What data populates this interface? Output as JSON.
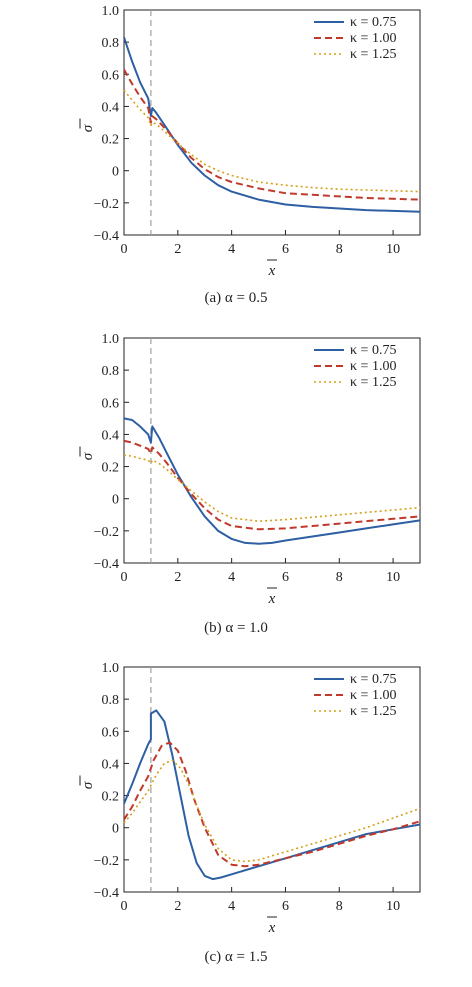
{
  "colors": {
    "k075": "#2e5fa3",
    "k100": "#c0392b",
    "k125": "#d4a017",
    "axis": "#231f20",
    "refline": "#a0a0a0"
  },
  "chart_data": [
    {
      "type": "line",
      "caption": "(a) α = 0.5",
      "xlabel": "x",
      "ylabel": "σ",
      "xlim": [
        0,
        11
      ],
      "ylim": [
        -0.4,
        1.0
      ],
      "xticks": [
        "0",
        "2",
        "4",
        "6",
        "8",
        "10"
      ],
      "yticks": [
        "1.0",
        "0.8",
        "0.6",
        "0.4",
        "0.2",
        "0",
        "−0.2",
        "−0.4"
      ],
      "vline_x": 1.0,
      "legend_position": "top-right",
      "series": [
        {
          "name": "κ = 0.75",
          "style": "solid",
          "x": [
            0,
            0.3,
            0.6,
            0.9,
            1.0,
            1.05,
            1.2,
            1.6,
            2,
            2.5,
            3,
            3.5,
            4,
            5,
            6,
            7,
            8,
            9,
            10,
            11
          ],
          "y": [
            0.83,
            0.68,
            0.55,
            0.45,
            0.34,
            0.39,
            0.36,
            0.26,
            0.16,
            0.05,
            -0.03,
            -0.09,
            -0.13,
            -0.18,
            -0.21,
            -0.225,
            -0.235,
            -0.245,
            -0.25,
            -0.255
          ]
        },
        {
          "name": "κ = 1.00",
          "style": "dashed",
          "x": [
            0,
            0.3,
            0.6,
            0.9,
            1.0,
            1.05,
            1.2,
            1.6,
            2,
            2.5,
            3,
            3.5,
            4,
            5,
            6,
            7,
            8,
            9,
            10,
            11
          ],
          "y": [
            0.63,
            0.54,
            0.46,
            0.39,
            0.3,
            0.34,
            0.32,
            0.25,
            0.17,
            0.08,
            0.01,
            -0.04,
            -0.07,
            -0.11,
            -0.14,
            -0.15,
            -0.16,
            -0.17,
            -0.175,
            -0.18
          ]
        },
        {
          "name": "κ = 1.25",
          "style": "dotted",
          "x": [
            0,
            0.3,
            0.6,
            0.9,
            1.0,
            1.05,
            1.2,
            1.6,
            2,
            2.5,
            3,
            3.5,
            4,
            5,
            6,
            7,
            8,
            9,
            10,
            11
          ],
          "y": [
            0.5,
            0.44,
            0.38,
            0.33,
            0.28,
            0.3,
            0.29,
            0.23,
            0.17,
            0.1,
            0.04,
            0.0,
            -0.03,
            -0.07,
            -0.09,
            -0.105,
            -0.115,
            -0.12,
            -0.125,
            -0.13
          ]
        }
      ]
    },
    {
      "type": "line",
      "caption": "(b) α = 1.0",
      "xlabel": "x",
      "ylabel": "σ",
      "xlim": [
        0,
        11
      ],
      "ylim": [
        -0.4,
        1.0
      ],
      "xticks": [
        "0",
        "2",
        "4",
        "6",
        "8",
        "10"
      ],
      "yticks": [
        "1.0",
        "0.8",
        "0.6",
        "0.4",
        "0.2",
        "0",
        "−0.2",
        "−0.4"
      ],
      "vline_x": 1.0,
      "legend_position": "top-right",
      "series": [
        {
          "name": "κ = 0.75",
          "style": "solid",
          "x": [
            0,
            0.3,
            0.6,
            0.9,
            1.0,
            1.05,
            1.3,
            1.6,
            2,
            2.5,
            3,
            3.5,
            4,
            4.5,
            5,
            5.5,
            6,
            7,
            8,
            9,
            10,
            11
          ],
          "y": [
            0.5,
            0.49,
            0.45,
            0.4,
            0.35,
            0.45,
            0.38,
            0.28,
            0.15,
            0.01,
            -0.11,
            -0.2,
            -0.25,
            -0.275,
            -0.28,
            -0.275,
            -0.26,
            -0.235,
            -0.21,
            -0.185,
            -0.16,
            -0.135
          ]
        },
        {
          "name": "κ = 1.00",
          "style": "dashed",
          "x": [
            0,
            0.3,
            0.6,
            0.9,
            1.0,
            1.05,
            1.3,
            1.6,
            2,
            2.5,
            3,
            3.5,
            4,
            5,
            6,
            7,
            8,
            9,
            10,
            11
          ],
          "y": [
            0.36,
            0.35,
            0.33,
            0.31,
            0.28,
            0.32,
            0.28,
            0.22,
            0.13,
            0.03,
            -0.06,
            -0.13,
            -0.17,
            -0.19,
            -0.185,
            -0.17,
            -0.155,
            -0.14,
            -0.125,
            -0.11
          ]
        },
        {
          "name": "κ = 1.25",
          "style": "dotted",
          "x": [
            0,
            0.3,
            0.6,
            0.9,
            1.0,
            1.05,
            1.3,
            1.6,
            2,
            2.5,
            3,
            3.5,
            4,
            5,
            6,
            7,
            8,
            9,
            10,
            11
          ],
          "y": [
            0.27,
            0.265,
            0.25,
            0.24,
            0.22,
            0.24,
            0.22,
            0.18,
            0.12,
            0.05,
            -0.02,
            -0.08,
            -0.12,
            -0.14,
            -0.13,
            -0.115,
            -0.1,
            -0.085,
            -0.07,
            -0.055
          ]
        }
      ]
    },
    {
      "type": "line",
      "caption": "(c) α = 1.5",
      "xlabel": "x",
      "ylabel": "σ",
      "xlim": [
        0,
        11
      ],
      "ylim": [
        -0.4,
        1.0
      ],
      "xticks": [
        "0",
        "2",
        "4",
        "6",
        "8",
        "10"
      ],
      "yticks": [
        "1.0",
        "0.8",
        "0.6",
        "0.4",
        "0.2",
        "0",
        "−0.2",
        "−0.4"
      ],
      "vline_x": 1.0,
      "legend_position": "top-right",
      "series": [
        {
          "name": "κ = 0.75",
          "style": "solid",
          "x": [
            0,
            0.3,
            0.6,
            0.9,
            1.0,
            1.0,
            1.2,
            1.5,
            1.8,
            2.1,
            2.4,
            2.7,
            3.0,
            3.3,
            3.6,
            4,
            5,
            6,
            7,
            8,
            9,
            10,
            11
          ],
          "y": [
            0.15,
            0.27,
            0.4,
            0.52,
            0.55,
            0.71,
            0.73,
            0.66,
            0.45,
            0.2,
            -0.05,
            -0.22,
            -0.3,
            -0.32,
            -0.31,
            -0.29,
            -0.24,
            -0.19,
            -0.14,
            -0.09,
            -0.04,
            -0.01,
            0.02
          ]
        },
        {
          "name": "κ = 1.00",
          "style": "dashed",
          "x": [
            0,
            0.3,
            0.6,
            0.9,
            1.1,
            1.4,
            1.7,
            2.0,
            2.3,
            2.6,
            3.0,
            3.5,
            4,
            4.5,
            5,
            6,
            7,
            8,
            9,
            10,
            11
          ],
          "y": [
            0.05,
            0.13,
            0.23,
            0.32,
            0.42,
            0.51,
            0.53,
            0.48,
            0.35,
            0.18,
            0.0,
            -0.17,
            -0.23,
            -0.24,
            -0.23,
            -0.19,
            -0.15,
            -0.1,
            -0.05,
            -0.01,
            0.04
          ]
        },
        {
          "name": "κ = 1.25",
          "style": "dotted",
          "x": [
            0,
            0.3,
            0.6,
            0.9,
            1.2,
            1.5,
            1.8,
            2.1,
            2.4,
            2.7,
            3.0,
            3.5,
            4,
            4.5,
            5,
            6,
            7,
            8,
            9,
            10,
            11
          ],
          "y": [
            0.03,
            0.09,
            0.16,
            0.23,
            0.33,
            0.4,
            0.42,
            0.37,
            0.27,
            0.14,
            0.02,
            -0.13,
            -0.2,
            -0.21,
            -0.2,
            -0.15,
            -0.1,
            -0.05,
            0.0,
            0.06,
            0.12
          ]
        }
      ]
    }
  ]
}
